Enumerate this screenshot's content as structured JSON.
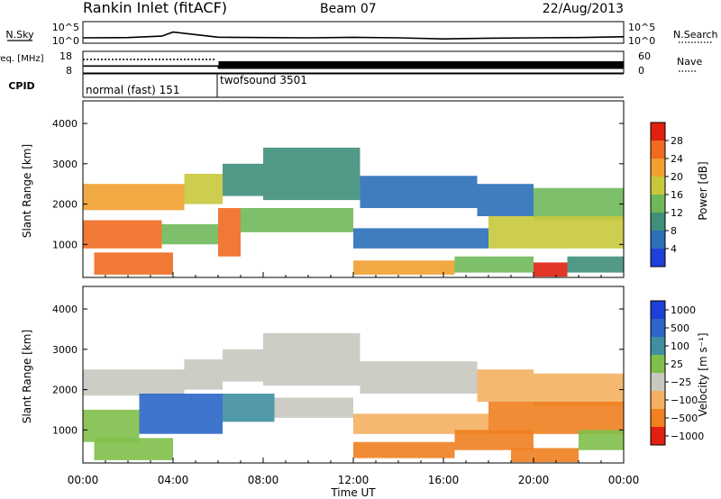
{
  "header": {
    "title": "Rankin Inlet (fitACF)",
    "beam": "Beam 07",
    "date": "22/Aug/2013"
  },
  "colors": {
    "background": "#ffffff",
    "axis": "#000000",
    "power_scale": [
      "#1f3fd8",
      "#2b6fb8",
      "#3f8f7a",
      "#6fb85a",
      "#c8c83c",
      "#f0a030",
      "#f06a20",
      "#e02010"
    ],
    "velocity_scale": [
      "#1f3fd8",
      "#2b66c8",
      "#3f8fa0",
      "#7fbf4a",
      "#c8c8c0",
      "#f4b060",
      "#f08020",
      "#e02010"
    ]
  },
  "chart_data": [
    {
      "type": "line",
      "panel": "noise",
      "left_label": "N.Sky",
      "left_ticks": [
        "10^5",
        "10^0"
      ],
      "right_label": "N.Search",
      "right_ticks": [
        "10^5",
        "10^0"
      ],
      "x": [
        "00:00",
        "02:00",
        "03:30",
        "04:00",
        "06:00",
        "08:00",
        "10:00",
        "12:00",
        "14:00",
        "16:00",
        "18:00",
        "20:00",
        "22:00",
        "24:00"
      ],
      "series": [
        {
          "values": [
            10,
            12,
            30,
            400,
            15,
            12,
            10,
            14,
            10,
            5,
            8,
            10,
            12,
            20
          ]
        }
      ]
    },
    {
      "type": "line",
      "panel": "frequency",
      "left_label": "Freq. [MHz]",
      "left_ticks": [
        "18",
        "8"
      ],
      "right_label": "Nave",
      "right_ticks": [
        "60",
        "0"
      ],
      "x": [
        "00:00",
        "06:00",
        "06:01",
        "24:00"
      ],
      "series": [
        {
          "values": [
            11.2,
            11.2,
            10.2,
            10.2
          ]
        }
      ]
    },
    {
      "type": "table",
      "panel": "cpid",
      "label": "CPID",
      "segments": [
        {
          "start": "00:00",
          "end": "06:00",
          "text": "normal (fast) 151"
        },
        {
          "start": "06:00",
          "end": "24:00",
          "text": "twofsound 3501"
        }
      ]
    },
    {
      "type": "heatmap",
      "panel": "power",
      "ylabel": "Slant Range [km]",
      "yticks": [
        "1000",
        "2000",
        "3000",
        "4000"
      ],
      "ylim": [
        180,
        4560
      ],
      "xlim": [
        0,
        24
      ],
      "colorbar_label": "Power [dB]",
      "colorbar_ticks": [
        "4",
        "8",
        "12",
        "16",
        "20",
        "24",
        "28"
      ],
      "clim": [
        0,
        32
      ],
      "bands": [
        {
          "t0": 0.0,
          "t1": 4.5,
          "r0": 1850,
          "r1": 2500,
          "v": 22
        },
        {
          "t0": 4.5,
          "t1": 6.2,
          "r0": 2000,
          "r1": 2750,
          "v": 16
        },
        {
          "t0": 6.2,
          "t1": 8.0,
          "r0": 2200,
          "r1": 3000,
          "v": 10
        },
        {
          "t0": 8.0,
          "t1": 12.3,
          "r0": 2100,
          "r1": 3400,
          "v": 8
        },
        {
          "t0": 12.3,
          "t1": 17.5,
          "r0": 1900,
          "r1": 2700,
          "v": 6
        },
        {
          "t0": 17.5,
          "t1": 20.0,
          "r0": 1700,
          "r1": 2500,
          "v": 6
        },
        {
          "t0": 20.0,
          "t1": 24.0,
          "r0": 1600,
          "r1": 2400,
          "v": 14
        },
        {
          "t0": 0.0,
          "t1": 3.5,
          "r0": 900,
          "r1": 1600,
          "v": 24
        },
        {
          "t0": 3.5,
          "t1": 6.0,
          "r0": 1000,
          "r1": 1500,
          "v": 12
        },
        {
          "t0": 6.0,
          "t1": 7.0,
          "r0": 700,
          "r1": 1900,
          "v": 26
        },
        {
          "t0": 7.0,
          "t1": 12.0,
          "r0": 1300,
          "r1": 1900,
          "v": 14
        },
        {
          "t0": 12.0,
          "t1": 18.0,
          "r0": 900,
          "r1": 1400,
          "v": 7
        },
        {
          "t0": 18.0,
          "t1": 24.0,
          "r0": 900,
          "r1": 1700,
          "v": 16
        },
        {
          "t0": 0.5,
          "t1": 4.0,
          "r0": 250,
          "r1": 800,
          "v": 26
        },
        {
          "t0": 12.0,
          "t1": 16.5,
          "r0": 250,
          "r1": 600,
          "v": 20
        },
        {
          "t0": 16.5,
          "t1": 20.0,
          "r0": 300,
          "r1": 700,
          "v": 12
        },
        {
          "t0": 20.0,
          "t1": 21.5,
          "r0": 200,
          "r1": 550,
          "v": 30
        },
        {
          "t0": 21.5,
          "t1": 24.0,
          "r0": 300,
          "r1": 700,
          "v": 10
        }
      ]
    },
    {
      "type": "heatmap",
      "panel": "velocity",
      "ylabel": "Slant Range [km]",
      "yticks": [
        "1000",
        "2000",
        "3000",
        "4000"
      ],
      "ylim": [
        180,
        4560
      ],
      "xlim": [
        0,
        24
      ],
      "colorbar_label": "Velocity [m s⁻¹]",
      "colorbar_ticks": [
        "1000",
        "500",
        "100",
        "25",
        "−25",
        "−100",
        "−500",
        "−1000"
      ],
      "bands": [
        {
          "t0": 0.0,
          "t1": 4.5,
          "r0": 1850,
          "r1": 2500,
          "v": 0
        },
        {
          "t0": 4.5,
          "t1": 6.2,
          "r0": 2000,
          "r1": 2750,
          "v": 0
        },
        {
          "t0": 6.2,
          "t1": 8.0,
          "r0": 2200,
          "r1": 3000,
          "v": 0
        },
        {
          "t0": 8.0,
          "t1": 12.3,
          "r0": 2100,
          "r1": 3400,
          "v": 0
        },
        {
          "t0": 12.3,
          "t1": 17.5,
          "r0": 1900,
          "r1": 2700,
          "v": 0
        },
        {
          "t0": 17.5,
          "t1": 20.0,
          "r0": 1700,
          "r1": 2500,
          "v": -60
        },
        {
          "t0": 20.0,
          "t1": 24.0,
          "r0": 1600,
          "r1": 2400,
          "v": -40
        },
        {
          "t0": 0.0,
          "t1": 2.5,
          "r0": 700,
          "r1": 1500,
          "v": 80
        },
        {
          "t0": 2.5,
          "t1": 6.2,
          "r0": 900,
          "r1": 1900,
          "v": 900
        },
        {
          "t0": 6.2,
          "t1": 8.5,
          "r0": 1200,
          "r1": 1900,
          "v": 300
        },
        {
          "t0": 8.5,
          "t1": 12.0,
          "r0": 1300,
          "r1": 1800,
          "v": 20
        },
        {
          "t0": 12.0,
          "t1": 18.0,
          "r0": 900,
          "r1": 1400,
          "v": -50
        },
        {
          "t0": 18.0,
          "t1": 24.0,
          "r0": 900,
          "r1": 1700,
          "v": -150
        },
        {
          "t0": 0.5,
          "t1": 4.0,
          "r0": 250,
          "r1": 800,
          "v": 60
        },
        {
          "t0": 12.0,
          "t1": 16.5,
          "r0": 300,
          "r1": 700,
          "v": -300
        },
        {
          "t0": 16.5,
          "t1": 20.0,
          "r0": 500,
          "r1": 1000,
          "v": -400
        },
        {
          "t0": 19.0,
          "t1": 22.0,
          "r0": 200,
          "r1": 550,
          "v": -400
        },
        {
          "t0": 22.0,
          "t1": 24.0,
          "r0": 500,
          "r1": 1000,
          "v": 60
        }
      ]
    }
  ],
  "x_axis": {
    "ticks": [
      "00:00",
      "04:00",
      "08:00",
      "12:00",
      "16:00",
      "20:00",
      "00:00"
    ],
    "label": "Time UT"
  }
}
